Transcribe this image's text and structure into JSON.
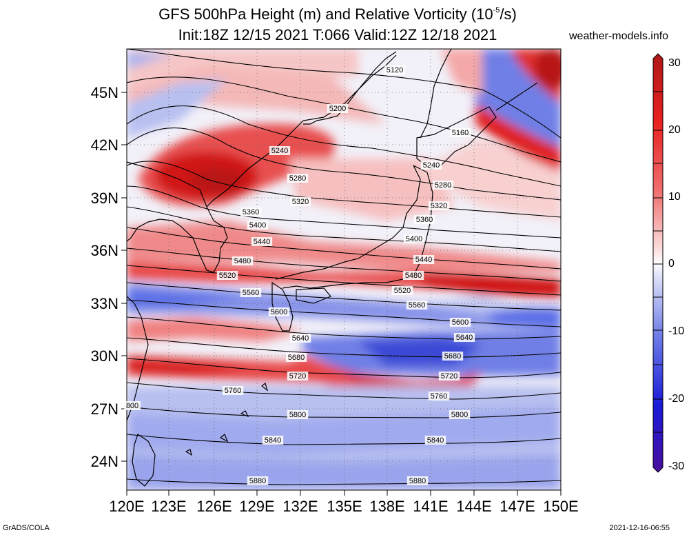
{
  "title": {
    "line1_a": "GFS 500hPa Height (m) and Relative Vorticity (10",
    "line1_exp": "-5",
    "line1_b": "/s)",
    "line2": "Init:18Z 12/15 2021 T:066 Valid:12Z 12/18 2021"
  },
  "site": "weather-models.info",
  "footer": {
    "left": "GrADS/COLA",
    "right": "2021-12-16-06:55"
  },
  "axes": {
    "lat_labels": [
      "45N",
      "42N",
      "39N",
      "36N",
      "33N",
      "30N",
      "27N",
      "24N"
    ],
    "lon_labels": [
      "120E",
      "123E",
      "126E",
      "129E",
      "132E",
      "135E",
      "138E",
      "141E",
      "144E",
      "147E",
      "150E"
    ]
  },
  "colorbar": {
    "labels": [
      "30",
      "20",
      "10",
      "0",
      "-10",
      "-20",
      "-30"
    ],
    "colors": [
      "#4a0d9e",
      "#1a1ad8",
      "#5a6ee8",
      "#c9cdf2",
      "#ffffff",
      "#f6c0c0",
      "#e85050",
      "#d01414",
      "#b01818"
    ]
  },
  "contour_labels": [
    "5120",
    "5200",
    "5160",
    "5240",
    "5240",
    "5280",
    "5280",
    "5320",
    "5320",
    "5360",
    "5360",
    "5400",
    "5400",
    "5440",
    "5440",
    "5480",
    "5480",
    "5520",
    "5520",
    "5560",
    "5560",
    "5600",
    "5600",
    "5640",
    "5640",
    "5680",
    "5680",
    "5720",
    "5720",
    "5760",
    "5760",
    "800",
    "5800",
    "5800",
    "5840",
    "5840",
    "5880",
    "5880"
  ],
  "vorticity_colors": {
    "strong_positive": "#d01414",
    "positive": "#f07070",
    "weak_positive": "#f8c8c8",
    "weak_negative": "#c8ccf0",
    "negative": "#6f7fe6",
    "strong_negative": "#3a48d6"
  }
}
